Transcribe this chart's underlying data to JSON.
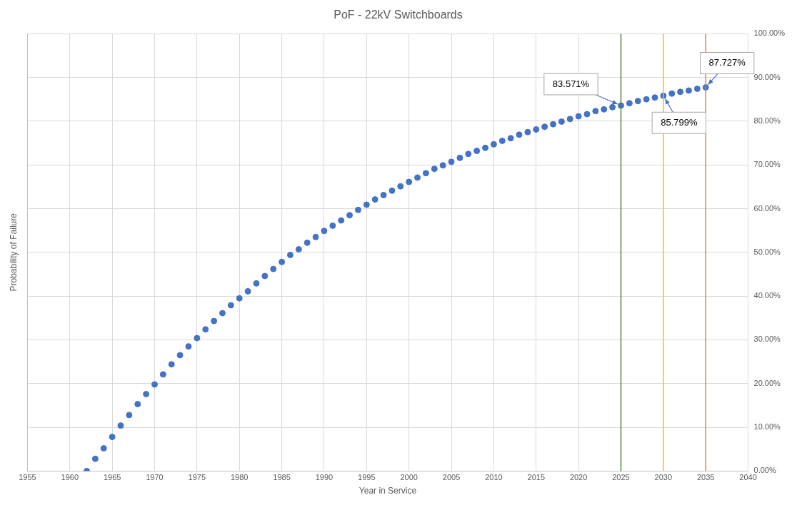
{
  "chart_data": {
    "type": "scatter",
    "title": "PoF - 22kV Switchboards",
    "xlabel": "Year in Service",
    "ylabel": "Probability of Failure",
    "x": [
      1962,
      1963,
      1964,
      1965,
      1966,
      1967,
      1968,
      1969,
      1970,
      1971,
      1972,
      1973,
      1974,
      1975,
      1976,
      1977,
      1978,
      1979,
      1980,
      1981,
      1982,
      1983,
      1984,
      1985,
      1986,
      1987,
      1988,
      1989,
      1990,
      1991,
      1992,
      1993,
      1994,
      1995,
      1996,
      1997,
      1998,
      1999,
      2000,
      2001,
      2002,
      2003,
      2004,
      2005,
      2006,
      2007,
      2008,
      2009,
      2010,
      2011,
      2012,
      2013,
      2014,
      2015,
      2016,
      2017,
      2018,
      2019,
      2020,
      2021,
      2022,
      2023,
      2024,
      2025,
      2026,
      2027,
      2028,
      2029,
      2030,
      2031,
      2032,
      2033,
      2034,
      2035
    ],
    "series": [
      {
        "color": "#4472c4",
        "values": [
          0,
          2.8,
          5.2,
          7.8,
          10.4,
          12.8,
          15.3,
          17.6,
          19.8,
          22.1,
          24.4,
          26.5,
          28.5,
          30.4,
          32.4,
          34.3,
          36.1,
          37.9,
          39.5,
          41.1,
          42.9,
          44.6,
          46.2,
          47.8,
          49.4,
          50.7,
          52.2,
          53.5,
          54.9,
          56.1,
          57.3,
          58.5,
          59.7,
          60.9,
          62.1,
          63.1,
          64.1,
          65.1,
          66.1,
          67.1,
          68.1,
          69.1,
          69.9,
          70.7,
          71.6,
          72.5,
          73.2,
          73.9,
          74.7,
          75.5,
          76.1,
          76.9,
          77.5,
          78.1,
          78.7,
          79.3,
          79.9,
          80.5,
          81.1,
          81.6,
          82.3,
          82.7,
          83.2,
          83.571,
          84.1,
          84.6,
          85.0,
          85.4,
          85.799,
          86.3,
          86.7,
          87.0,
          87.4,
          87.727
        ]
      }
    ],
    "xlim": [
      1955,
      2040
    ],
    "xticks": [
      1955,
      1960,
      1965,
      1970,
      1975,
      1980,
      1985,
      1990,
      1995,
      2000,
      2005,
      2010,
      2015,
      2020,
      2025,
      2030,
      2035,
      2040
    ],
    "ylim": [
      0,
      100
    ],
    "yticks": [
      {
        "value": 0,
        "label": "0.00%"
      },
      {
        "value": 10,
        "label": "10.00%"
      },
      {
        "value": 20,
        "label": "20.00%"
      },
      {
        "value": 30,
        "label": "30.00%"
      },
      {
        "value": 40,
        "label": "40.00%"
      },
      {
        "value": 50,
        "label": "50.00%"
      },
      {
        "value": 60,
        "label": "60.00%"
      },
      {
        "value": 70,
        "label": "70.00%"
      },
      {
        "value": 80,
        "label": "80.00%"
      },
      {
        "value": 90,
        "label": "90.00%"
      },
      {
        "value": 100,
        "label": "100.00%"
      }
    ],
    "ref_lines": [
      {
        "axis": "x",
        "value": 2025,
        "color": "#548235"
      },
      {
        "axis": "x",
        "value": 2030,
        "color": "#ffc000"
      },
      {
        "axis": "x",
        "value": 2035,
        "color": "#ed7d31"
      }
    ],
    "annotations": [
      {
        "text": "83.571%",
        "x": 2025,
        "y": 83.571
      },
      {
        "text": "85.799%",
        "x": 2030,
        "y": 85.799
      },
      {
        "text": "87.727%",
        "x": 2035,
        "y": 87.727
      }
    ],
    "grid": true,
    "legend": false,
    "marker": "circle"
  }
}
